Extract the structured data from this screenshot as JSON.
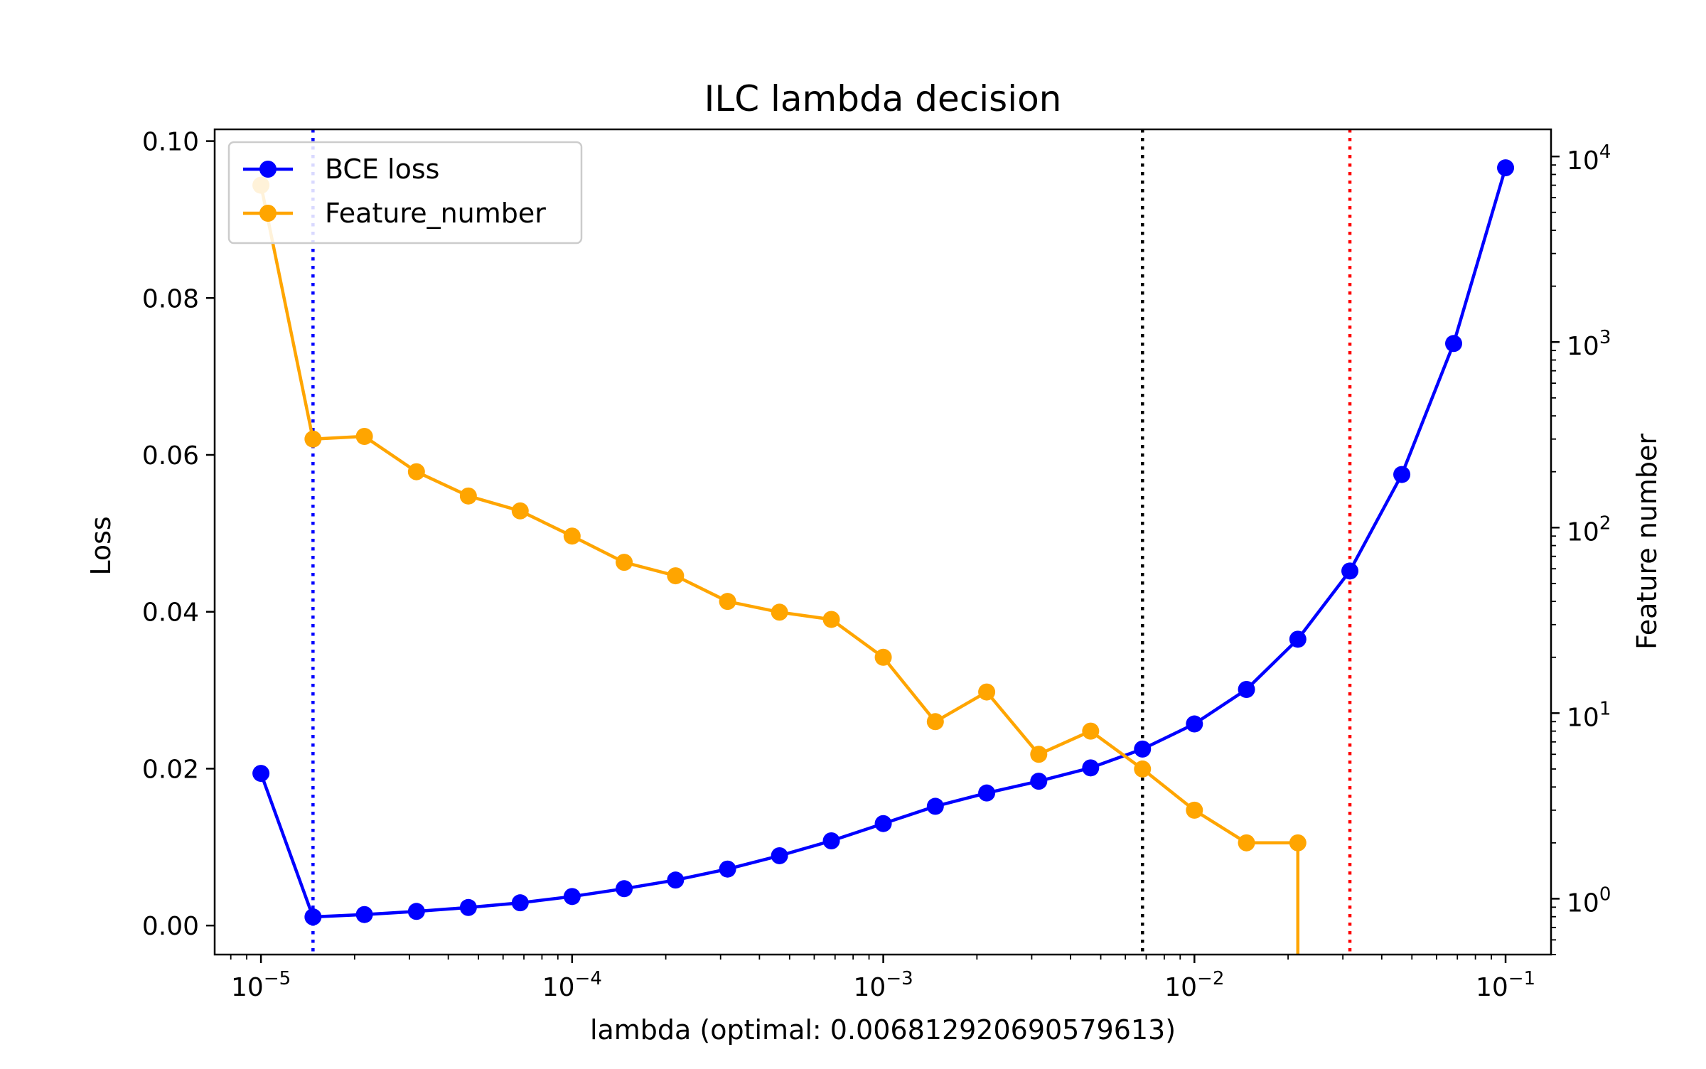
{
  "chart_data": {
    "type": "line",
    "title": "ILC lambda decision",
    "xlabel": "lambda (optimal: 0.006812920690579613)",
    "ylabel": "Loss",
    "y2label": "Feature number",
    "xscale": "log",
    "y2scale": "log",
    "xlim": [
      7.1e-06,
      0.14
    ],
    "ylim": [
      -0.0037,
      0.1015
    ],
    "y2lim": [
      0.5,
      14000
    ],
    "x": [
      1e-05,
      1.47e-05,
      2.15e-05,
      3.16e-05,
      4.64e-05,
      6.81e-05,
      0.0001,
      0.000147,
      0.000215,
      0.000316,
      0.000464,
      0.000681,
      0.001,
      0.00147,
      0.00215,
      0.00316,
      0.00464,
      0.00681,
      0.01,
      0.0147,
      0.0215,
      0.0316,
      0.0464,
      0.0681,
      0.1
    ],
    "series": [
      {
        "name": "BCE loss",
        "axis": "left",
        "color": "#0000ff",
        "values": [
          0.0194,
          0.0011,
          0.0014,
          0.0018,
          0.0023,
          0.0029,
          0.0037,
          0.0047,
          0.0058,
          0.0072,
          0.0089,
          0.0108,
          0.013,
          0.0152,
          0.0169,
          0.0184,
          0.0201,
          0.0225,
          0.0257,
          0.0301,
          0.0365,
          0.0452,
          0.0575,
          0.0742,
          0.0966
        ]
      },
      {
        "name": "Feature_number",
        "axis": "right",
        "color": "#ffa500",
        "values": [
          7000,
          300,
          310,
          200,
          148,
          123,
          90,
          65,
          55,
          40,
          35,
          32,
          20,
          9,
          13,
          6,
          8,
          5,
          3,
          2,
          2,
          0,
          null,
          null,
          null
        ]
      }
    ],
    "vlines": [
      {
        "x": 1.47e-05,
        "color": "#0000ff",
        "style": "dotted"
      },
      {
        "x": 0.00681,
        "color": "#000000",
        "style": "dotted"
      },
      {
        "x": 0.0316,
        "color": "#ff0000",
        "style": "dotted"
      }
    ],
    "xticks": [
      {
        "value": 1e-05,
        "base": "10",
        "exp": "−5"
      },
      {
        "value": 0.0001,
        "base": "10",
        "exp": "−4"
      },
      {
        "value": 0.001,
        "base": "10",
        "exp": "−3"
      },
      {
        "value": 0.01,
        "base": "10",
        "exp": "−2"
      },
      {
        "value": 0.1,
        "base": "10",
        "exp": "−1"
      }
    ],
    "yticks": [
      {
        "value": 0.0,
        "label": "0.00"
      },
      {
        "value": 0.02,
        "label": "0.02"
      },
      {
        "value": 0.04,
        "label": "0.04"
      },
      {
        "value": 0.06,
        "label": "0.06"
      },
      {
        "value": 0.08,
        "label": "0.08"
      },
      {
        "value": 0.1,
        "label": "0.10"
      }
    ],
    "y2ticks": [
      {
        "value": 1,
        "base": "10",
        "exp": "0"
      },
      {
        "value": 10,
        "base": "10",
        "exp": "1"
      },
      {
        "value": 100,
        "base": "10",
        "exp": "2"
      },
      {
        "value": 1000,
        "base": "10",
        "exp": "3"
      },
      {
        "value": 10000,
        "base": "10",
        "exp": "4"
      }
    ],
    "legend": {
      "position": "upper-left",
      "entries": [
        "BCE loss",
        "Feature_number"
      ]
    },
    "grid": false
  }
}
